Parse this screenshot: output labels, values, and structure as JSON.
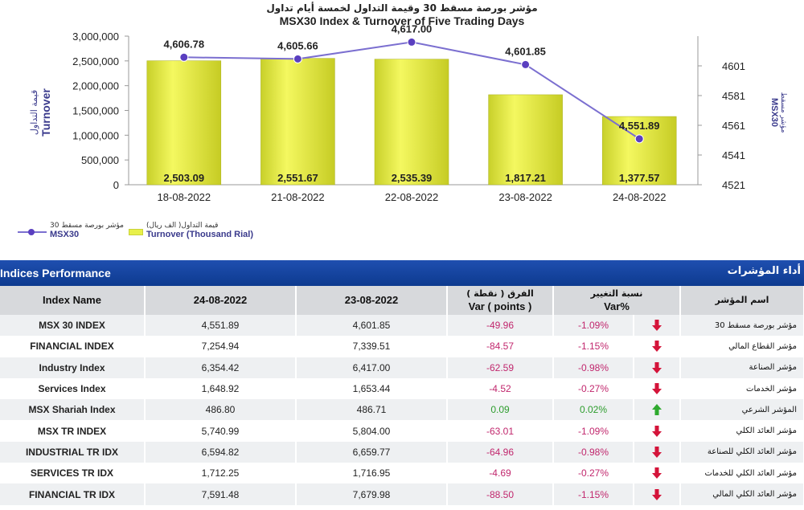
{
  "titles": {
    "arabic": "مؤشر بورصة مسقط 30 وقيمة التداول لخمسة أيام تداول",
    "english": "MSX30 Index & Turnover of Five Trading Days"
  },
  "chart_data": {
    "type": "bar",
    "categories": [
      "18-08-2022",
      "21-08-2022",
      "22-08-2022",
      "23-08-2022",
      "24-08-2022"
    ],
    "series": [
      {
        "name": "Turnover (Thousand Rial)",
        "name_ar": "قيمة التداول( الف ريال)",
        "type": "bar",
        "axis": "left",
        "values": [
          2503.09,
          2551.67,
          2535.39,
          1817.21,
          1377.57
        ],
        "labels": [
          "2,503.09",
          "2,551.67",
          "2,535.39",
          "1,817.21",
          "1,377.57"
        ],
        "color": "#e6ee3c"
      },
      {
        "name": "MSX30",
        "name_ar": "مؤشر بورصة مسقط 30",
        "type": "line",
        "axis": "right",
        "values": [
          4606.78,
          4605.66,
          4617.0,
          4601.85,
          4551.89
        ],
        "labels": [
          "4,606.78",
          "4,605.66",
          "4,617.00",
          "4,601.85",
          "4,551.89"
        ],
        "color": "#7b6fd0"
      }
    ],
    "left_axis": {
      "label": "Turnover",
      "label_ar": "قيمة التداول",
      "ticks": [
        "0",
        "500,000",
        "1,000,000",
        "1,500,000",
        "2,000,000",
        "2,500,000",
        "3,000,000"
      ],
      "range": [
        0,
        3000000
      ]
    },
    "right_axis": {
      "label": "MSX30",
      "label_ar": "مؤشر مسقط",
      "ticks": [
        "4521",
        "4541",
        "4561",
        "4581",
        "4601"
      ],
      "range": [
        4521,
        4621
      ]
    }
  },
  "legend": {
    "msx_ar": "مؤشر بورصة مسقط 30",
    "msx_en": "MSX30",
    "turnover_ar": "قيمة التداول( الف ريال)",
    "turnover_en": "Turnover (Thousand Rial)"
  },
  "table": {
    "title_en": "Indices Performance",
    "title_ar": "أداء المؤشرات",
    "headers": {
      "index_name": "Index Name",
      "date1": "24-08-2022",
      "date2": "23-08-2022",
      "var_ar": "الفرق ( نقطة )",
      "var_en": "Var ( points )",
      "pct_ar": "نسبة التغيير",
      "pct_en": "Var%",
      "name_ar": "اسم المؤشر"
    },
    "rows": [
      {
        "name": "MSX 30 INDEX",
        "d1": "4,551.89",
        "d2": "4,601.85",
        "var": "-49.96",
        "pct": "-1.09%",
        "dir": "down",
        "ar": "مؤشر بورصة مسقط 30"
      },
      {
        "name": "FINANCIAL INDEX",
        "d1": "7,254.94",
        "d2": "7,339.51",
        "var": "-84.57",
        "pct": "-1.15%",
        "dir": "down",
        "ar": "مؤشر القطاع المالي"
      },
      {
        "name": "Industry Index",
        "d1": "6,354.42",
        "d2": "6,417.00",
        "var": "-62.59",
        "pct": "-0.98%",
        "dir": "down",
        "ar": "مؤشر الصناعة"
      },
      {
        "name": "Services Index",
        "d1": "1,648.92",
        "d2": "1,653.44",
        "var": "-4.52",
        "pct": "-0.27%",
        "dir": "down",
        "ar": "مؤشر الخدمات"
      },
      {
        "name": "MSX Shariah Index",
        "d1": "486.80",
        "d2": "486.71",
        "var": "0.09",
        "pct": "0.02%",
        "dir": "up",
        "ar": "المؤشر الشرعي"
      },
      {
        "name": "MSX TR INDEX",
        "d1": "5,740.99",
        "d2": "5,804.00",
        "var": "-63.01",
        "pct": "-1.09%",
        "dir": "down",
        "ar": "مؤشر العائد الكلي"
      },
      {
        "name": "INDUSTRIAL TR IDX",
        "d1": "6,594.82",
        "d2": "6,659.77",
        "var": "-64.96",
        "pct": "-0.98%",
        "dir": "down",
        "ar": "مؤشر العائد الكلي للصناعة"
      },
      {
        "name": "SERVICES TR IDX",
        "d1": "1,712.25",
        "d2": "1,716.95",
        "var": "-4.69",
        "pct": "-0.27%",
        "dir": "down",
        "ar": "مؤشر العائد الكلي للخدمات"
      },
      {
        "name": "FINANCIAL TR IDX",
        "d1": "7,591.48",
        "d2": "7,679.98",
        "var": "-88.50",
        "pct": "-1.15%",
        "dir": "down",
        "ar": "مؤشر العائد الكلي المالي"
      }
    ]
  }
}
